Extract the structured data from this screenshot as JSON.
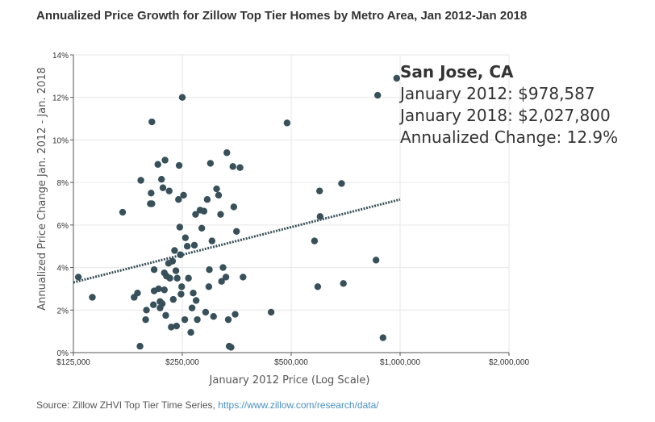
{
  "chart_data": {
    "type": "scatter",
    "title": "Annualized Price Growth for Zillow Top Tier Homes by Metro Area, Jan 2012-Jan 2018",
    "xlabel": "January 2012 Price (Log Scale)",
    "ylabel": "Annualized Price Change Jan. 2012 - Jan. 2018",
    "x_scale": "log",
    "xlim": [
      125000,
      2000000
    ],
    "ylim": [
      0,
      14
    ],
    "x_ticks": [
      {
        "value": 125000,
        "label": "$125,000"
      },
      {
        "value": 250000,
        "label": "$250,000"
      },
      {
        "value": 500000,
        "label": "$500,000"
      },
      {
        "value": 1000000,
        "label": "$1,000,000"
      },
      {
        "value": 2000000,
        "label": "$2,000,000"
      }
    ],
    "y_ticks": [
      {
        "value": 0,
        "label": "0%"
      },
      {
        "value": 2,
        "label": "2%"
      },
      {
        "value": 4,
        "label": "4%"
      },
      {
        "value": 6,
        "label": "6%"
      },
      {
        "value": 8,
        "label": "8%"
      },
      {
        "value": 10,
        "label": "10%"
      },
      {
        "value": 12,
        "label": "12%"
      },
      {
        "value": 14,
        "label": "14%"
      }
    ],
    "grid": true,
    "point_color": "#37505a",
    "trend_color": "#37505a",
    "trendline": {
      "start": [
        125000,
        3.3
      ],
      "end": [
        1000000,
        7.2
      ]
    },
    "points": [
      [
        129000,
        3.55
      ],
      [
        141000,
        2.6
      ],
      [
        171000,
        6.6
      ],
      [
        184000,
        2.6
      ],
      [
        188000,
        2.8
      ],
      [
        191000,
        0.3
      ],
      [
        192000,
        8.1
      ],
      [
        198000,
        1.55
      ],
      [
        199000,
        2.0
      ],
      [
        204000,
        7.0
      ],
      [
        205000,
        7.5
      ],
      [
        206000,
        7.0
      ],
      [
        206000,
        10.85
      ],
      [
        208000,
        2.25
      ],
      [
        209000,
        2.9
      ],
      [
        209000,
        3.9
      ],
      [
        214000,
        8.85
      ],
      [
        215000,
        3.0
      ],
      [
        217000,
        2.4
      ],
      [
        217000,
        2.1
      ],
      [
        219000,
        8.15
      ],
      [
        220000,
        2.3
      ],
      [
        221000,
        7.75
      ],
      [
        223000,
        3.75
      ],
      [
        223000,
        2.95
      ],
      [
        224000,
        9.05
      ],
      [
        225000,
        1.75
      ],
      [
        226000,
        3.6
      ],
      [
        229000,
        4.2
      ],
      [
        230000,
        7.6
      ],
      [
        231000,
        3.5
      ],
      [
        233000,
        1.2
      ],
      [
        235000,
        4.3
      ],
      [
        236000,
        2.5
      ],
      [
        238000,
        4.8
      ],
      [
        240000,
        3.85
      ],
      [
        241000,
        1.25
      ],
      [
        242000,
        3.5
      ],
      [
        244000,
        7.2
      ],
      [
        245000,
        8.8
      ],
      [
        246000,
        5.9
      ],
      [
        247000,
        4.6
      ],
      [
        248000,
        2.75
      ],
      [
        249000,
        3.1
      ],
      [
        250000,
        12.0
      ],
      [
        252000,
        7.4
      ],
      [
        254000,
        1.55
      ],
      [
        255000,
        5.4
      ],
      [
        258000,
        5.0
      ],
      [
        260000,
        3.5
      ],
      [
        264000,
        0.95
      ],
      [
        266000,
        2.1
      ],
      [
        268000,
        2.8
      ],
      [
        270000,
        5.05
      ],
      [
        272000,
        6.5
      ],
      [
        273000,
        2.45
      ],
      [
        275000,
        1.55
      ],
      [
        280000,
        6.7
      ],
      [
        283000,
        5.85
      ],
      [
        287000,
        6.65
      ],
      [
        290000,
        1.9
      ],
      [
        293000,
        7.2
      ],
      [
        296000,
        3.1
      ],
      [
        297000,
        3.9
      ],
      [
        299000,
        8.9
      ],
      [
        302000,
        5.25
      ],
      [
        305000,
        1.7
      ],
      [
        311000,
        7.7
      ],
      [
        315000,
        7.4
      ],
      [
        319000,
        6.5
      ],
      [
        321000,
        3.35
      ],
      [
        324000,
        4.0
      ],
      [
        330000,
        3.55
      ],
      [
        332000,
        9.4
      ],
      [
        335000,
        1.55
      ],
      [
        337000,
        0.3
      ],
      [
        341000,
        0.25
      ],
      [
        345000,
        8.75
      ],
      [
        347000,
        6.85
      ],
      [
        350000,
        1.8
      ],
      [
        353000,
        5.7
      ],
      [
        361000,
        8.7
      ],
      [
        368000,
        3.55
      ],
      [
        440000,
        1.9
      ],
      [
        487000,
        10.8
      ],
      [
        580000,
        5.25
      ],
      [
        592000,
        3.1
      ],
      [
        599000,
        7.6
      ],
      [
        601000,
        6.4
      ],
      [
        689000,
        7.95
      ],
      [
        697000,
        3.25
      ],
      [
        858000,
        4.35
      ],
      [
        867000,
        12.1
      ],
      [
        897000,
        0.7
      ],
      [
        978587,
        12.9
      ]
    ],
    "highlight": {
      "title": "San Jose, CA",
      "line1": "January 2012: $978,587",
      "line2": "January 2018: $2,027,800",
      "line3": "Annualized Change: 12.9%"
    }
  },
  "source": {
    "prefix": "Source: Zillow ZHVI Top Tier Time Series, ",
    "link_text": "https://www.zillow.com/research/data/"
  }
}
